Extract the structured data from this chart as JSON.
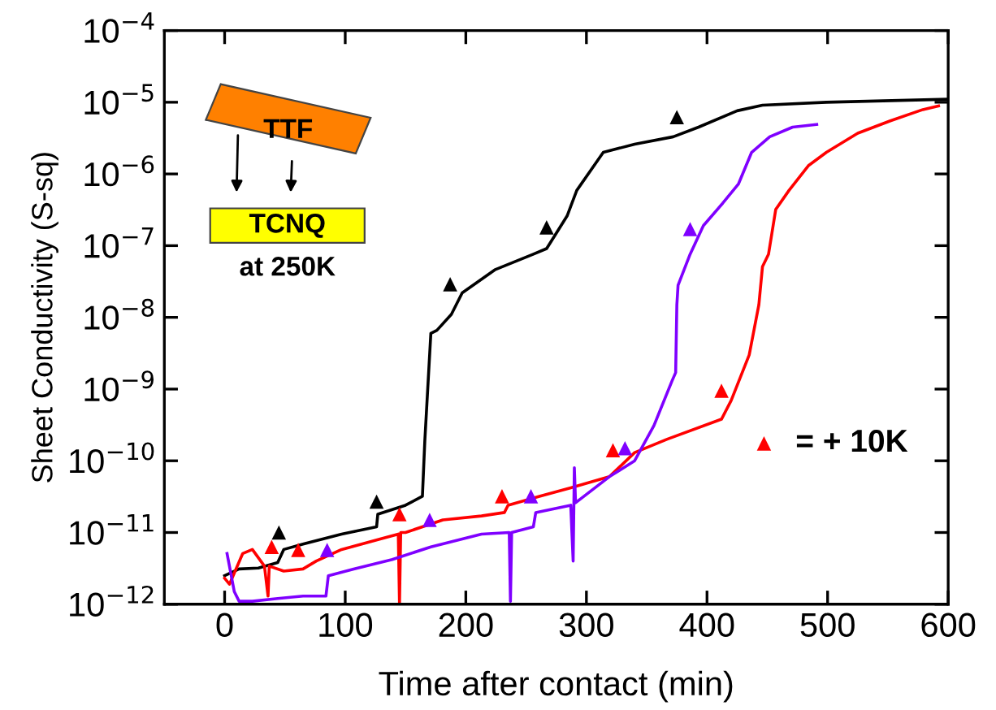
{
  "chart_data": {
    "type": "line",
    "xlabel": "Time after contact (min)",
    "ylabel": "Sheet Conductivity (S-sq)",
    "log": "y",
    "xlim": [
      -50,
      600
    ],
    "xticks": [
      0,
      100,
      200,
      300,
      400,
      500,
      600
    ],
    "ylim": [
      1e-12,
      0.0001
    ],
    "yticks": [
      {
        "value": 1e-12,
        "label": "10$^{−12}$"
      },
      {
        "value": 1e-11,
        "label": "10$^{−11}$"
      },
      {
        "value": 1e-10,
        "label": "10$^{−10}$"
      },
      {
        "value": 1e-09,
        "label": "10$^{−9}$"
      },
      {
        "value": 1e-08,
        "label": "10$^{−8}$"
      },
      {
        "value": 1e-07,
        "label": "10$^{−7}$"
      },
      {
        "value": 1e-06,
        "label": "10$^{−6}$"
      },
      {
        "value": 1e-05,
        "label": "10$^{−5}$"
      },
      {
        "value": 0.0001,
        "label": "10$^{−4}$"
      }
    ],
    "grid": false,
    "legend": "right",
    "line_style": "solid",
    "annotations": [
      "TTF",
      "TCNQ",
      "at 250K"
    ],
    "series": [
      {
        "color": "#000000",
        "x": [
          0,
          12,
          28,
          44,
          49,
          65,
          97,
          126,
          127,
          150,
          164,
          166,
          171,
          176,
          188,
          197,
          224,
          256,
          267,
          274,
          284,
          292,
          314,
          340,
          372,
          393,
          425,
          446,
          499,
          599
        ],
        "values": [
          2.5e-12,
          3.1e-12,
          3.2e-12,
          3.8e-12,
          5.8e-12,
          6.9e-12,
          9.5e-12,
          1.2e-11,
          1.8e-11,
          2.4e-11,
          3.2e-11,
          1.9e-10,
          6e-09,
          6.6e-09,
          1.1e-08,
          2.2e-08,
          4.6e-08,
          7.6e-08,
          9.1e-08,
          1.4e-07,
          2.6e-07,
          5.9e-07,
          2e-06,
          2.6e-06,
          3.3e-06,
          4.5e-06,
          7.6e-06,
          9.1e-06,
          1e-05,
          1.1e-05
        ]
      },
      {
        "color": "#ff0000",
        "x": [
          0,
          4,
          15,
          23,
          33,
          36,
          37,
          49,
          65,
          76,
          97,
          129,
          144,
          145,
          146,
          150,
          181,
          213,
          232,
          235,
          261,
          287,
          319,
          340,
          367,
          412,
          420,
          435,
          443,
          446,
          451,
          457,
          468,
          484,
          499,
          525,
          552,
          579,
          592
        ],
        "values": [
          2.3e-12,
          1.9e-12,
          5.1e-12,
          5.8e-12,
          3.4e-12,
          1.3e-12,
          3.4e-12,
          2.9e-12,
          3.1e-12,
          4e-12,
          5.8e-12,
          8.1e-12,
          9.5e-12,
          1e-12,
          1e-11,
          1e-11,
          1.5e-11,
          1.7e-11,
          1.9e-11,
          2.4e-11,
          3.2e-11,
          4.2e-11,
          6e-11,
          1.3e-10,
          2e-10,
          3.8e-10,
          6.9e-10,
          3e-09,
          1.5e-08,
          5.1e-08,
          7.6e-08,
          3.2e-07,
          5.9e-07,
          1.3e-06,
          2e-06,
          3.7e-06,
          5.5e-06,
          7.9e-06,
          8.9e-06
        ]
      },
      {
        "color": "#7f00ff",
        "x": [
          2,
          8,
          12,
          23,
          44,
          65,
          84,
          86,
          107,
          139,
          171,
          213,
          236,
          237,
          238,
          256,
          258,
          287,
          289,
          290,
          291,
          319,
          340,
          356,
          371,
          374,
          375,
          376,
          386,
          397,
          413,
          426,
          437,
          452,
          471,
          491
        ],
        "values": [
          5.1e-12,
          1.5e-12,
          1.1e-12,
          1.1e-12,
          1.2e-12,
          1.3e-12,
          1.3e-12,
          2.5e-12,
          3.1e-12,
          4.2e-12,
          6.3e-12,
          9.5e-12,
          1e-11,
          1.1e-12,
          1e-11,
          1.2e-11,
          1.9e-11,
          2.4e-11,
          4e-12,
          8e-11,
          2.6e-11,
          6e-11,
          1e-10,
          3.1e-10,
          1.3e-09,
          1.7e-09,
          1.5e-08,
          2.8e-08,
          7.6e-08,
          1.9e-07,
          3.9e-07,
          7.2e-07,
          2e-06,
          3.3e-06,
          4.5e-06,
          4.9e-06
        ]
      },
      {
        "type": "scatter",
        "marker": "triangle",
        "color": "#000000",
        "x": [
          45,
          126,
          187,
          267,
          375
        ],
        "values": [
          1e-11,
          2.7e-11,
          2.9e-08,
          1.8e-07,
          6.2e-06
        ]
      },
      {
        "type": "scatter",
        "marker": "triangle",
        "color": "#ff0000",
        "name": "= + 10K",
        "x": [
          39,
          61,
          145,
          230,
          322,
          412
        ],
        "values": [
          6.3e-12,
          5.7e-12,
          1.8e-11,
          3.2e-11,
          1.4e-10,
          9.5e-10
        ]
      },
      {
        "type": "scatter",
        "marker": "triangle",
        "color": "#7f00ff",
        "x": [
          85,
          170,
          254,
          332,
          386
        ],
        "values": [
          5.7e-12,
          1.5e-11,
          3.2e-11,
          1.5e-10,
          1.7e-07
        ]
      }
    ]
  }
}
